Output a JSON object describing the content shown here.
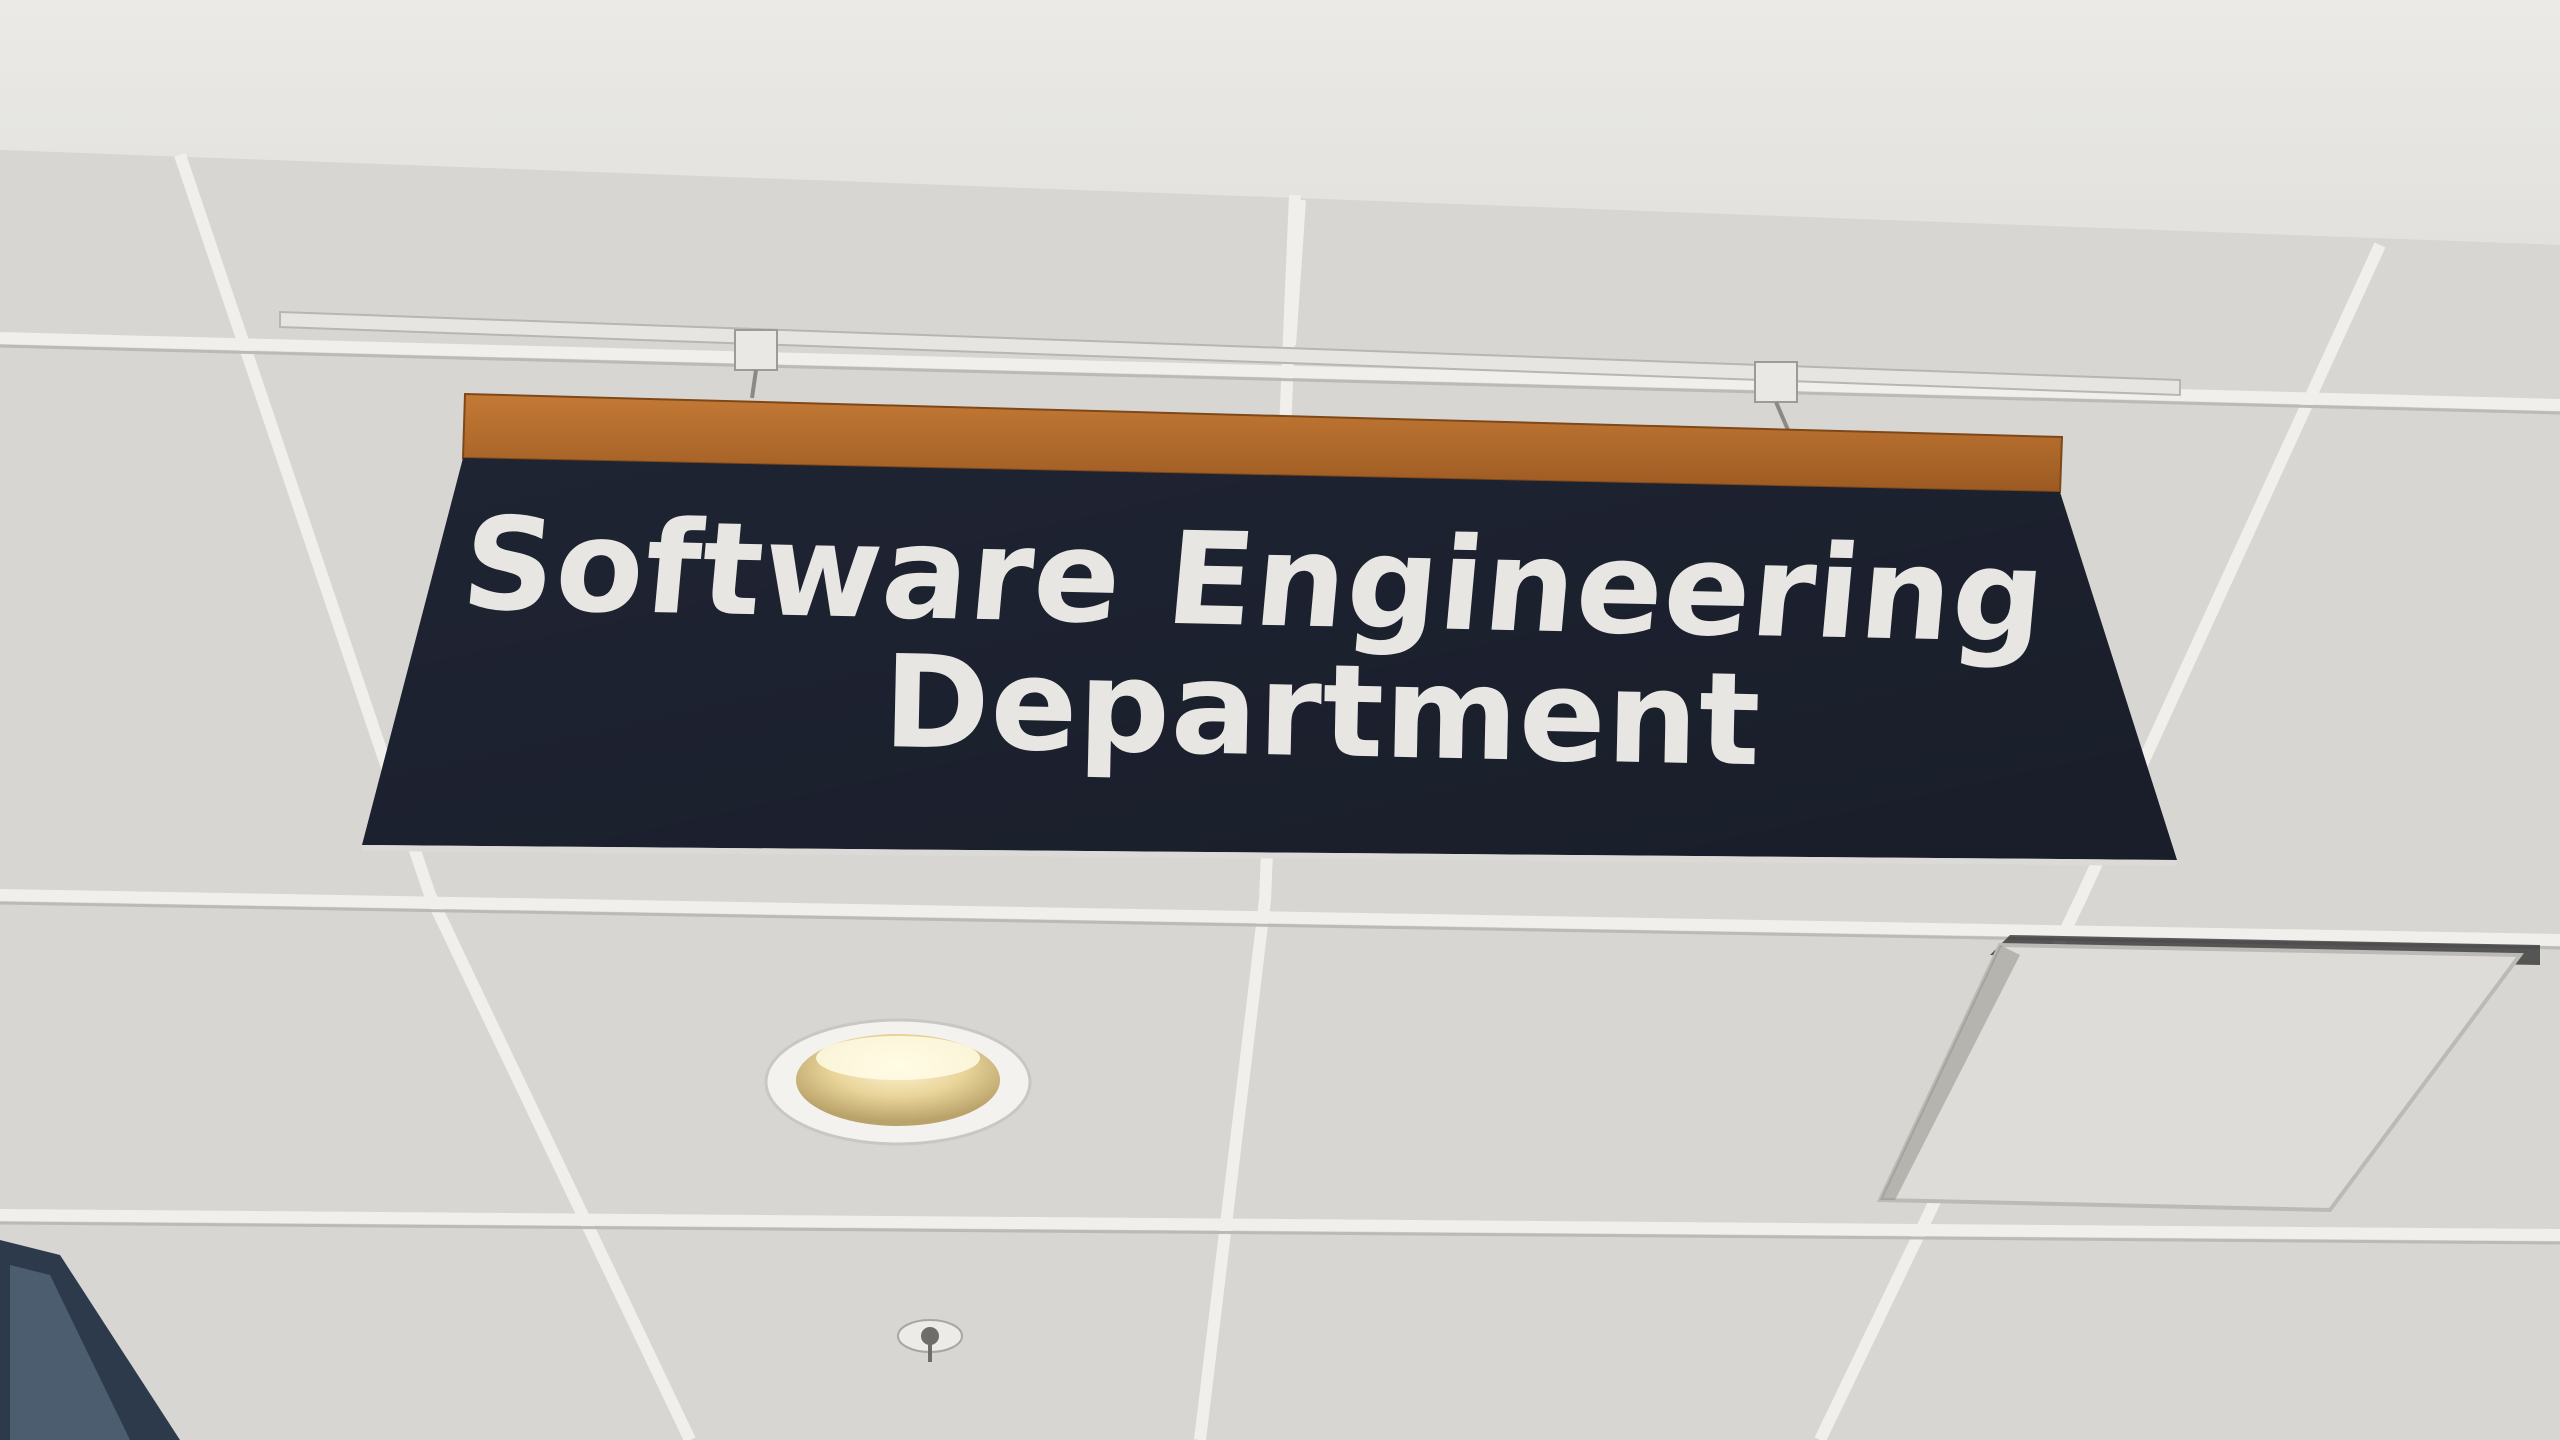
{
  "sign": {
    "line1": "Software Engineering",
    "line2": "Department",
    "panel_color": "#1f2433",
    "text_color": "#e7e6e2",
    "rail_color": "#b26b2c"
  },
  "ceiling": {
    "tile_color": "#d9d7d3",
    "grid_color": "#f1f0ec",
    "wall_color": "#e9e8e4"
  },
  "fixtures": {
    "light_icon": "recessed-light-icon",
    "sprinkler_icon": "sprinkler-icon",
    "vent_icon": "ceiling-vent-icon"
  }
}
